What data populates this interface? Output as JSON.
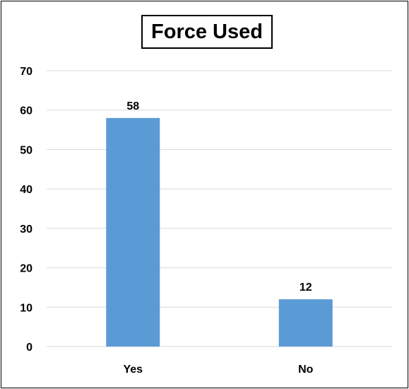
{
  "chart_data": {
    "type": "bar",
    "title": "Force Used",
    "categories": [
      "Yes",
      "No"
    ],
    "values": [
      58,
      12
    ],
    "data_labels": [
      "58",
      "12"
    ],
    "xlabel": "",
    "ylabel": "",
    "ylim": [
      0,
      70
    ],
    "y_ticks": [
      0,
      10,
      20,
      30,
      40,
      50,
      60,
      70
    ],
    "y_tick_labels": [
      "0",
      "10",
      "20",
      "30",
      "40",
      "50",
      "60",
      "70"
    ],
    "grid": true,
    "legend": "none",
    "colors": {
      "bar": "#5b9bd5",
      "grid": "#d9d9d9",
      "axis": "#d9d9d9",
      "text": "#000000"
    }
  }
}
